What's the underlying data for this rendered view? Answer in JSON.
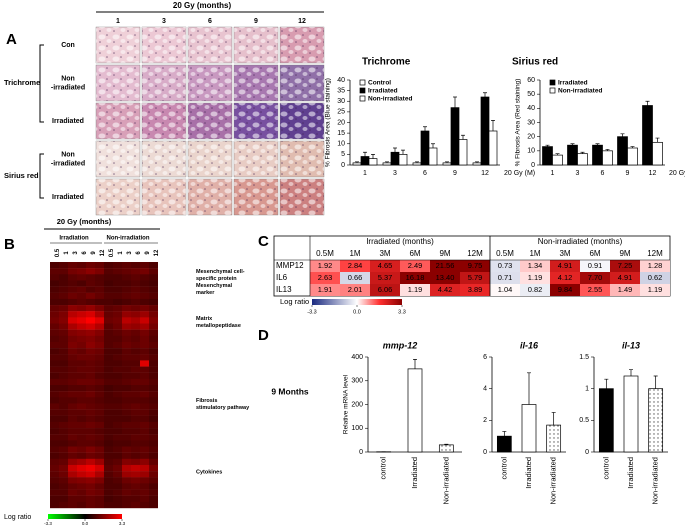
{
  "panel_labels": [
    "A",
    "B",
    "C",
    "D"
  ],
  "panel_a": {
    "header": "20 Gy (months)",
    "columns": [
      1,
      3,
      6,
      9,
      12
    ],
    "stain_labels": [
      "Trichrome",
      "Sirius red"
    ],
    "row_labels": [
      [
        "Con"
      ],
      [
        "Non",
        "-irradiated"
      ],
      [
        "Irradiated"
      ],
      [
        "Non",
        "-irradiated"
      ],
      [
        "Irradiated"
      ]
    ]
  },
  "panel_d_heading": "9 Months",
  "chart_data": [
    {
      "type": "bar",
      "title": "Trichrome",
      "ylabel": "% Fibrosis Area (Blue staining)",
      "xlabel": "20 Gy (M)",
      "categories": [
        1,
        3,
        6,
        9,
        12
      ],
      "ylim": [
        0,
        40
      ],
      "yticks": [
        0,
        5,
        10,
        15,
        20,
        25,
        30,
        35,
        40
      ],
      "legend": "upper left",
      "series": [
        {
          "name": "Control",
          "color": "#ffffff",
          "values": [
            1,
            1,
            1,
            1,
            1
          ],
          "errors": [
            0.5,
            0.5,
            0.5,
            0.5,
            0.5
          ]
        },
        {
          "name": "Irradiated",
          "color": "#000000",
          "values": [
            4,
            6,
            16,
            27,
            32
          ],
          "errors": [
            2,
            2,
            2,
            5,
            2
          ]
        },
        {
          "name": "Non-irradiated",
          "color": "#ffffff",
          "values": [
            3,
            5,
            8,
            12,
            16
          ],
          "errors": [
            2,
            2,
            2,
            2,
            5
          ]
        }
      ]
    },
    {
      "type": "bar",
      "title": "Sirius red",
      "ylabel": "% Fibrosis Area (Red staining)",
      "xlabel": "20 Gy (M)",
      "categories": [
        1,
        3,
        6,
        9,
        12
      ],
      "ylim": [
        0,
        60
      ],
      "yticks": [
        0,
        10,
        20,
        30,
        40,
        50,
        60
      ],
      "legend": "upper left",
      "series": [
        {
          "name": "Irradiated",
          "color": "#000000",
          "values": [
            13,
            14,
            14,
            20,
            42
          ],
          "errors": [
            1,
            1,
            1,
            2,
            3
          ]
        },
        {
          "name": "Non-irradiated",
          "color": "#ffffff",
          "values": [
            7,
            8,
            10,
            12,
            16
          ],
          "errors": [
            1,
            1,
            1,
            1,
            3
          ]
        }
      ]
    },
    {
      "type": "heatmap",
      "title": "20 Gy (months)",
      "column_groups": [
        "Irradiation",
        "Non-irradiation"
      ],
      "categories": [
        "0.5",
        "1",
        "3",
        "6",
        "9",
        "12",
        "0.5",
        "1",
        "3",
        "6",
        "9",
        "12"
      ],
      "group_labels": [
        [
          "Mesenchymal cell-",
          "specific protein",
          "Mesenchymal",
          "marker"
        ],
        [
          "Matrix",
          "metallopeptidase"
        ],
        [
          "Fibrosis",
          "stimulatory pathway"
        ],
        [
          "Cytokines"
        ]
      ],
      "colorbar_title": "Log ratio",
      "clim": [
        -3.3,
        3.3
      ],
      "cticks": [
        -3.3,
        {
          "value": 0,
          "label": "0.0"
        },
        3.3
      ],
      "values": [
        [
          1.0,
          1.1,
          1.3,
          1.2,
          1.4,
          1.3,
          1.0,
          1.1,
          1.2,
          1.1,
          1.2,
          1.0
        ],
        [
          1.2,
          1.2,
          1.5,
          1.6,
          1.8,
          1.6,
          1.1,
          1.2,
          1.3,
          1.4,
          1.5,
          1.2
        ],
        [
          1.1,
          1.0,
          1.2,
          1.3,
          1.2,
          1.1,
          1.0,
          1.0,
          1.1,
          1.2,
          1.1,
          1.0
        ],
        [
          0.9,
          1.0,
          1.1,
          1.0,
          1.2,
          1.1,
          0.9,
          1.0,
          1.0,
          1.1,
          1.0,
          0.9
        ],
        [
          1.0,
          1.1,
          1.2,
          1.3,
          1.1,
          1.2,
          1.0,
          1.0,
          1.1,
          1.2,
          1.1,
          1.0
        ],
        [
          1.1,
          1.2,
          1.4,
          1.3,
          1.5,
          1.3,
          1.1,
          1.1,
          1.2,
          1.3,
          1.2,
          1.1
        ],
        [
          1.0,
          1.0,
          1.1,
          1.2,
          1.1,
          1.0,
          1.0,
          0.9,
          1.0,
          1.1,
          1.0,
          0.9
        ],
        [
          1.3,
          1.4,
          1.8,
          1.7,
          1.9,
          1.6,
          1.2,
          1.3,
          1.5,
          1.4,
          1.5,
          1.3
        ],
        [
          1.4,
          1.6,
          2.4,
          2.6,
          2.8,
          2.2,
          1.3,
          1.4,
          1.9,
          1.8,
          2.0,
          1.5
        ],
        [
          1.5,
          1.7,
          2.8,
          3.0,
          3.3,
          2.9,
          1.4,
          1.5,
          2.4,
          2.2,
          2.6,
          1.7
        ],
        [
          1.3,
          1.5,
          2.2,
          2.5,
          2.7,
          2.3,
          1.2,
          1.4,
          2.0,
          1.9,
          2.1,
          1.5
        ],
        [
          1.2,
          1.3,
          1.7,
          1.8,
          1.9,
          1.7,
          1.1,
          1.2,
          1.4,
          1.3,
          1.5,
          1.2
        ],
        [
          1.1,
          1.2,
          1.5,
          1.6,
          1.7,
          1.5,
          1.1,
          1.1,
          1.3,
          1.2,
          1.4,
          1.1
        ],
        [
          1.2,
          1.2,
          1.6,
          1.5,
          1.8,
          1.6,
          1.1,
          1.2,
          1.4,
          1.3,
          1.4,
          1.2
        ],
        [
          1.0,
          1.1,
          1.4,
          1.3,
          1.5,
          1.4,
          1.0,
          1.0,
          1.2,
          1.1,
          1.2,
          1.0
        ],
        [
          1.1,
          1.1,
          1.3,
          1.4,
          1.4,
          1.3,
          1.0,
          1.1,
          1.2,
          1.2,
          1.3,
          1.1
        ],
        [
          1.0,
          1.0,
          1.2,
          1.2,
          1.3,
          1.2,
          1.0,
          1.0,
          1.1,
          1.1,
          2.9,
          1.0
        ],
        [
          1.1,
          1.1,
          1.2,
          1.3,
          1.3,
          1.2,
          1.0,
          1.1,
          1.1,
          1.2,
          1.2,
          1.0
        ],
        [
          1.0,
          1.1,
          1.2,
          1.2,
          1.3,
          1.1,
          1.0,
          1.0,
          1.1,
          1.1,
          1.2,
          1.0
        ],
        [
          1.2,
          1.2,
          1.3,
          1.4,
          1.4,
          1.3,
          1.1,
          1.1,
          1.2,
          1.3,
          1.3,
          1.1
        ],
        [
          1.0,
          1.0,
          1.1,
          1.1,
          1.2,
          1.1,
          0.9,
          1.0,
          1.0,
          1.1,
          1.1,
          1.0
        ],
        [
          1.1,
          1.2,
          1.3,
          1.3,
          1.4,
          1.2,
          1.0,
          1.1,
          1.2,
          1.2,
          1.3,
          1.1
        ],
        [
          1.0,
          1.1,
          1.1,
          1.2,
          1.2,
          1.1,
          1.0,
          1.0,
          1.1,
          1.1,
          1.1,
          1.0
        ],
        [
          1.2,
          1.1,
          1.3,
          1.4,
          1.3,
          1.2,
          1.1,
          1.1,
          1.2,
          1.3,
          1.2,
          1.1
        ],
        [
          1.1,
          1.1,
          1.2,
          1.2,
          1.3,
          1.2,
          1.0,
          1.0,
          1.1,
          1.2,
          1.2,
          1.0
        ],
        [
          1.0,
          1.0,
          1.2,
          1.1,
          1.2,
          1.1,
          1.0,
          1.0,
          1.0,
          1.1,
          1.1,
          0.9
        ],
        [
          1.1,
          1.2,
          1.3,
          1.3,
          1.4,
          1.3,
          1.0,
          1.1,
          1.2,
          1.2,
          1.3,
          1.1
        ],
        [
          1.0,
          1.1,
          1.2,
          1.2,
          1.2,
          1.1,
          1.0,
          1.0,
          1.1,
          1.1,
          1.2,
          1.0
        ],
        [
          1.1,
          1.1,
          1.3,
          1.2,
          1.3,
          1.2,
          1.0,
          1.1,
          1.1,
          1.2,
          1.2,
          1.1
        ],
        [
          1.0,
          1.0,
          1.1,
          1.2,
          1.2,
          1.1,
          0.9,
          1.0,
          1.0,
          1.1,
          1.1,
          1.0
        ],
        [
          1.1,
          1.2,
          1.5,
          1.4,
          1.6,
          1.4,
          1.0,
          1.1,
          1.3,
          1.2,
          1.3,
          1.1
        ],
        [
          1.0,
          1.1,
          1.3,
          1.2,
          1.4,
          1.3,
          1.0,
          1.0,
          1.2,
          1.1,
          1.2,
          1.0
        ],
        [
          1.2,
          1.3,
          1.9,
          2.1,
          2.4,
          2.0,
          1.1,
          1.2,
          1.7,
          1.6,
          1.8,
          1.3
        ],
        [
          1.3,
          1.5,
          2.6,
          2.9,
          3.1,
          2.7,
          1.2,
          1.4,
          2.3,
          2.5,
          2.4,
          1.6
        ],
        [
          1.2,
          1.4,
          2.2,
          2.5,
          2.7,
          2.2,
          1.1,
          1.3,
          2.0,
          2.1,
          2.0,
          1.4
        ],
        [
          1.1,
          1.2,
          1.6,
          1.7,
          1.8,
          1.6,
          1.0,
          1.1,
          1.4,
          1.5,
          1.4,
          1.2
        ],
        [
          1.0,
          1.1,
          1.3,
          1.4,
          1.5,
          1.3,
          1.0,
          1.0,
          1.2,
          1.3,
          1.2,
          1.0
        ],
        [
          1.1,
          1.1,
          1.4,
          1.3,
          1.5,
          1.4,
          1.0,
          1.1,
          1.3,
          1.2,
          1.3,
          1.1
        ],
        [
          1.0,
          1.0,
          1.2,
          1.2,
          1.3,
          1.2,
          0.9,
          1.0,
          1.1,
          1.1,
          1.2,
          1.0
        ],
        [
          1.0,
          1.1,
          1.2,
          1.1,
          1.3,
          1.2,
          1.0,
          1.0,
          1.1,
          1.2,
          1.1,
          1.0
        ]
      ]
    },
    {
      "type": "bar",
      "title": "mmp-12",
      "ylabel": "Relative mRNA level",
      "xtick_rotation": -90,
      "categories": [
        "control",
        "Irradiated",
        "Non-irradiated"
      ],
      "ylim": [
        0,
        400
      ],
      "yticks": [
        0,
        100,
        200,
        300,
        400
      ],
      "colors": [
        "#000000",
        "#ffffff",
        "#ffffff"
      ],
      "dotted": [
        false,
        false,
        true
      ],
      "values": [
        1,
        350,
        30
      ],
      "errors": [
        0,
        40,
        3
      ]
    },
    {
      "type": "bar",
      "title": "il-16",
      "xtick_rotation": -90,
      "categories": [
        "control",
        "Irradiated",
        "Non-irradiated"
      ],
      "ylim": [
        0,
        6
      ],
      "yticks": [
        0,
        2,
        4,
        6
      ],
      "colors": [
        "#000000",
        "#ffffff",
        "#ffffff"
      ],
      "dotted": [
        false,
        false,
        true
      ],
      "values": [
        1,
        3,
        1.7
      ],
      "errors": [
        0.3,
        2,
        0.8
      ]
    },
    {
      "type": "bar",
      "title": "il-13",
      "xtick_rotation": -90,
      "categories": [
        "control",
        "Irradiated",
        "Non-irradiated"
      ],
      "ylim": [
        0,
        1.5
      ],
      "yticks": [
        0,
        0.5,
        1,
        1.5
      ],
      "colors": [
        "#000000",
        "#ffffff",
        "#ffffff"
      ],
      "dotted": [
        false,
        false,
        true
      ],
      "values": [
        1,
        1.2,
        1
      ],
      "errors": [
        0.15,
        0.1,
        0.2
      ]
    }
  ],
  "table_c": {
    "group_headers": [
      "Irradiated  (months)",
      "Non-irradiated  (months)"
    ],
    "months": [
      "0.5M",
      "1M",
      "3M",
      "6M",
      "9M",
      "12M",
      "0.5M",
      "1M",
      "3M",
      "6M",
      "9M",
      "12M"
    ],
    "rows": [
      {
        "label": "MMP12",
        "cells": [
          "1.92",
          "2.84",
          "4.65",
          "2.49",
          "21.56",
          "9.75",
          "0.73",
          "1.34",
          "4.91",
          "0.91",
          "7.25",
          "1.28"
        ]
      },
      {
        "label": "IL6",
        "cells": [
          "2.63",
          "0.66",
          "5.37",
          "16.18",
          "13.40",
          "5.79",
          "0.71",
          "1.19",
          "4.12",
          "7.70",
          "4.91",
          "0.62"
        ]
      },
      {
        "label": "IL13",
        "cells": [
          "1.91",
          "2.01",
          "6.06",
          "1.19",
          "4.42",
          "3.89",
          "1.04",
          "0.82",
          "9.84",
          "2.55",
          "1.49",
          "1.19"
        ]
      }
    ],
    "legend_title": "Log ratio",
    "clim": [
      -3.3,
      3.3
    ],
    "cticks": [
      -3.3,
      {
        "value": 0,
        "label": "0.0"
      },
      3.3
    ]
  }
}
